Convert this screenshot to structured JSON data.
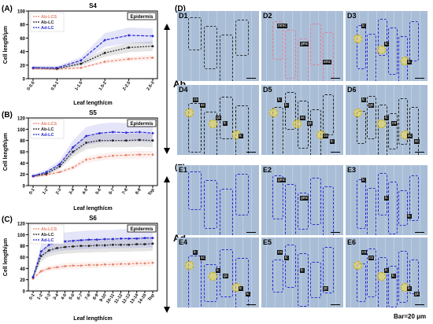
{
  "panel_labels": {
    "A": "(A)",
    "B": "(B)",
    "C": "(C)",
    "D": "(D)",
    "E": "(E)"
  },
  "scale_bar": "Bar=20 μm",
  "side_labels": {
    "ab": "Ab",
    "ad": "Ad"
  },
  "tiles": {
    "D": [
      "D1",
      "D2",
      "D3",
      "D4",
      "D5",
      "D6"
    ],
    "E": [
      "E1",
      "E2",
      "E3",
      "E4",
      "E5",
      "E6"
    ]
  },
  "tags": {
    "D2": [
      "mmc",
      "gmc",
      "smc"
    ],
    "D3": [
      "lc",
      "lc",
      "lc"
    ],
    "D4": [
      "co",
      "gc",
      "lc",
      "sc",
      "lc"
    ],
    "D5": [
      "lc",
      "sc",
      "co",
      "lc",
      "gc",
      "lc"
    ],
    "D6": [
      "lc",
      "lc",
      "sc",
      "gc",
      "co",
      "sc"
    ],
    "E2": [
      "gmc",
      "gmc"
    ],
    "E3": [
      "lc",
      "lc",
      "lc"
    ],
    "E4": [
      "lc",
      "lc",
      "lc",
      "sc",
      "gc",
      "lc"
    ],
    "E5": [
      "co",
      "lc",
      "gc",
      "lc"
    ],
    "E6": [
      "co",
      "lc",
      "lc",
      "co",
      "lc",
      "gc"
    ]
  },
  "chart_data": [
    {
      "type": "line",
      "title": "S4",
      "tag": "Epidermis",
      "xlabel": "Leaf length/cm",
      "ylabel": "Cell length/μm",
      "ylim": [
        0,
        100
      ],
      "yticks": [
        0,
        20,
        40,
        60,
        80,
        100
      ],
      "categories": [
        "0-0.5",
        "0.5-1",
        "1-1.5",
        "1.5-2",
        "2-2.5",
        "2.5-3"
      ],
      "series": [
        {
          "name": "Ab-LCS",
          "color": "#e8836d",
          "values": [
            15,
            14,
            16,
            25,
            29,
            31
          ]
        },
        {
          "name": "Ab-LC",
          "color": "#222222",
          "values": [
            16,
            15,
            22,
            38,
            46,
            48
          ]
        },
        {
          "name": "Ad-LC",
          "color": "#2b2bd6",
          "values": [
            16,
            16,
            27,
            57,
            64,
            63
          ]
        }
      ]
    },
    {
      "type": "line",
      "title": "S5",
      "tag": "Epidermis",
      "xlabel": "Leaf length/cm",
      "ylabel": "Cell length/μm",
      "ylim": [
        0,
        120
      ],
      "yticks": [
        0,
        20,
        40,
        60,
        80,
        100,
        120
      ],
      "categories": [
        "0-1",
        "1-2",
        "2-3",
        "3-4",
        "4-5",
        "5-6",
        "6-7",
        "7-8",
        "8-9",
        "Top"
      ],
      "series": [
        {
          "name": "Ab-LCS",
          "color": "#e8836d",
          "values": [
            16,
            19,
            24,
            32,
            46,
            50,
            53,
            54,
            55,
            55
          ]
        },
        {
          "name": "Ab-LC",
          "color": "#222222",
          "values": [
            17,
            21,
            34,
            60,
            76,
            80,
            80,
            80,
            81,
            80
          ]
        },
        {
          "name": "Ad-LC",
          "color": "#2b2bd6",
          "values": [
            17,
            24,
            38,
            68,
            88,
            93,
            95,
            94,
            95,
            93
          ]
        }
      ]
    },
    {
      "type": "line",
      "title": "S6",
      "tag": "Epidermis",
      "xlabel": "Leaf length/cm",
      "ylabel": "Cell length/μm",
      "ylim": [
        0,
        120
      ],
      "yticks": [
        0,
        20,
        40,
        60,
        80,
        100,
        120
      ],
      "categories": [
        "0-1",
        "1-2",
        "2-3",
        "3-4",
        "4-5",
        "5-6",
        "6-7",
        "7-8",
        "8-9",
        "9-10",
        "10-11",
        "11-12",
        "12-13",
        "13-14",
        "14-15",
        "Top"
      ],
      "series": [
        {
          "name": "Ab-LCS",
          "color": "#e8836d",
          "values": [
            22,
            35,
            40,
            42,
            44,
            45,
            45,
            46,
            46,
            47,
            47,
            48,
            48,
            49,
            49,
            50
          ]
        },
        {
          "name": "Ab-LC",
          "color": "#222222",
          "values": [
            24,
            62,
            72,
            76,
            78,
            79,
            80,
            80,
            81,
            81,
            82,
            82,
            82,
            83,
            83,
            84
          ]
        },
        {
          "name": "Ad-LC",
          "color": "#2b2bd6",
          "values": [
            25,
            70,
            82,
            86,
            88,
            89,
            90,
            91,
            91,
            92,
            92,
            93,
            93,
            93,
            94,
            94
          ]
        }
      ]
    }
  ]
}
